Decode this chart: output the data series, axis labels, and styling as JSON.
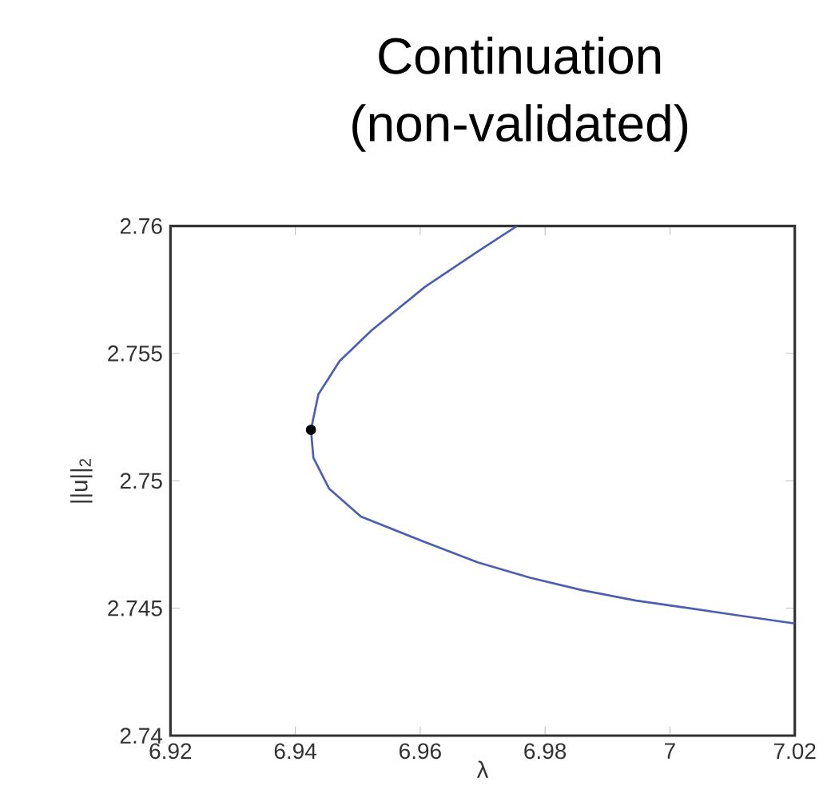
{
  "chart_data": {
    "type": "line",
    "title": "Continuation",
    "subtitle": "(non-validated)",
    "xlabel": "λ",
    "ylabel": "||u||$_{2}$",
    "xlim": [
      6.92,
      7.02
    ],
    "ylim": [
      2.74,
      2.76
    ],
    "xticks": [
      6.92,
      6.94,
      6.96,
      6.98,
      7,
      7.02
    ],
    "yticks": [
      2.74,
      2.745,
      2.75,
      2.755,
      2.76
    ],
    "grid": false,
    "series": [
      {
        "color": "#4a5fb0",
        "marker": "none",
        "line_style": "solid",
        "x": [
          6.9755,
          6.9692,
          6.9607,
          6.9522,
          6.9471,
          6.9437,
          6.9425,
          6.9429,
          6.9454,
          6.9505,
          6.9607,
          6.9692,
          6.9776,
          6.9861,
          6.9946,
          7.0031,
          7.0115,
          7.02
        ],
        "values": [
          2.76,
          2.759,
          2.7576,
          2.7559,
          2.7547,
          2.7534,
          2.752,
          2.7509,
          2.7497,
          2.7486,
          2.7476,
          2.7468,
          2.7462,
          2.7457,
          2.7453,
          2.745,
          2.7447,
          2.7444
        ]
      },
      {
        "type": "scatter",
        "color": "#000000",
        "marker": "circle",
        "x": [
          6.9425
        ],
        "values": [
          2.752
        ]
      }
    ]
  }
}
